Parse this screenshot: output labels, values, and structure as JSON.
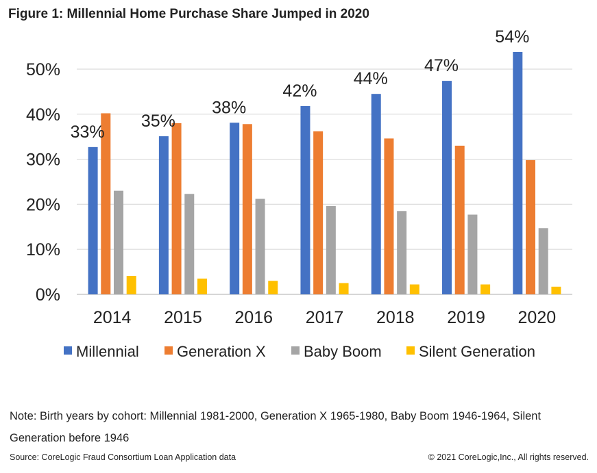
{
  "title": "Figure 1: Millennial Home Purchase Share Jumped in 2020",
  "note": "Note: Birth years by cohort: Millennial 1981-2000, Generation X 1965-1980, Baby Boom 1946-1964, Silent Generation before 1946",
  "source": "Source: CoreLogic Fraud Consortium Loan Application data",
  "copyright": "© 2021 CoreLogic,Inc., All rights reserved.",
  "chart_data": {
    "type": "bar",
    "title": "Figure 1: Millennial Home Purchase Share Jumped in 2020",
    "xlabel": "",
    "ylabel": "",
    "categories": [
      "2014",
      "2015",
      "2016",
      "2017",
      "2018",
      "2019",
      "2020"
    ],
    "ylim": [
      0,
      0.5
    ],
    "yticks": [
      "0%",
      "10%",
      "20%",
      "30%",
      "40%",
      "50%"
    ],
    "grid": true,
    "legend_position": "bottom",
    "series": [
      {
        "name": "Millennial",
        "color": "#4472C4",
        "values": [
          32.7,
          35.1,
          38.1,
          41.8,
          44.5,
          47.4,
          53.8
        ],
        "labels": [
          "33%",
          "35%",
          "38%",
          "42%",
          "44%",
          "47%",
          "54%"
        ]
      },
      {
        "name": "Generation X",
        "color": "#ED7D31",
        "values": [
          40.2,
          38.0,
          37.8,
          36.2,
          34.6,
          33.0,
          29.8
        ]
      },
      {
        "name": "Baby Boom",
        "color": "#A5A5A5",
        "values": [
          23.0,
          22.3,
          21.2,
          19.6,
          18.5,
          17.7,
          14.7
        ]
      },
      {
        "name": "Silent Generation",
        "color": "#FFC000",
        "values": [
          4.1,
          3.5,
          3.0,
          2.5,
          2.2,
          2.2,
          1.7
        ]
      }
    ]
  }
}
